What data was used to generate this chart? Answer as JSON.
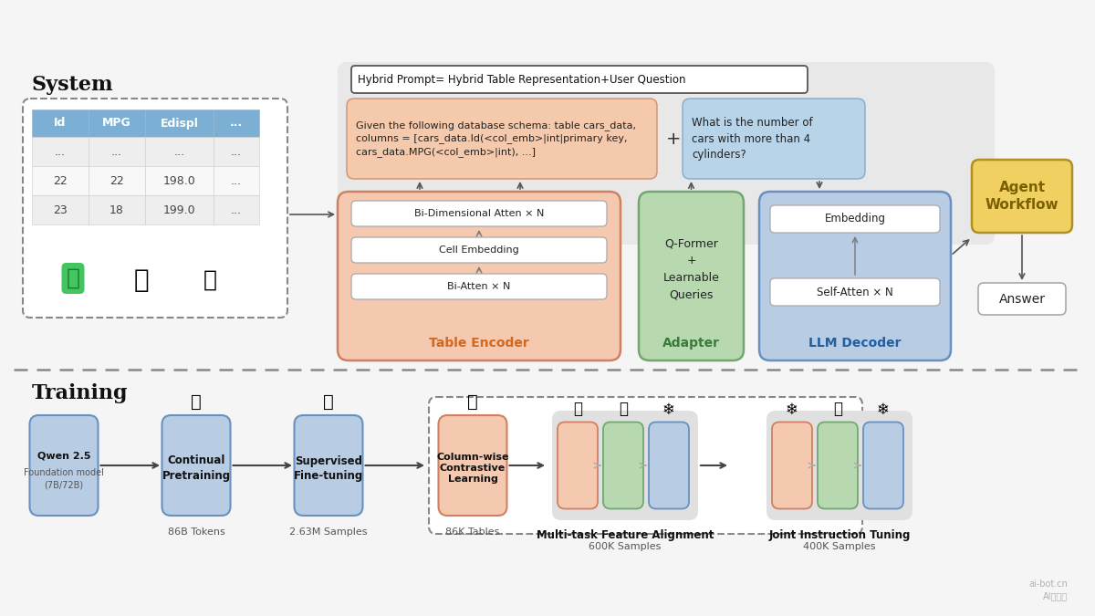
{
  "bg_color": "#f5f5f5",
  "system_label": "System",
  "training_label": "Training",
  "table_headers": [
    "Id",
    "MPG",
    "Edispl",
    "..."
  ],
  "table_rows": [
    [
      "...",
      "...",
      "...",
      "..."
    ],
    [
      "22",
      "22",
      "198.0",
      "..."
    ],
    [
      "23",
      "18",
      "199.0",
      "..."
    ]
  ],
  "header_color": "#7bafd4",
  "header_text": "#ffffff",
  "row_bg_alt": "#eeeeee",
  "row_bg": "#f8f8f8",
  "hybrid_prompt_text": "Hybrid Prompt= Hybrid Table Representation+User Question",
  "salmon_text": "Given the following database schema: table cars_data,\ncolumns = [cars_data.Id(<col_emb>|int|primary key,\ncars_data.MPG(<col_emb>|int), ...]",
  "salmon_bg": "#f5c9ac",
  "salmon_border": "#d09070",
  "blue_text": "What is the number of\ncars with more than 4\ncylinders?",
  "blue_bg": "#b8d4e8",
  "blue_border": "#85aac8",
  "outer_prompt_bg": "#e8e8e8",
  "te_bg": "#f5c8b0",
  "te_border": "#d08060",
  "te_label": "Table Encoder",
  "te_label_color": "#d06820",
  "te_inner": [
    "Bi-Dimensional Atten × N",
    "Cell Embedding",
    "Bi-Atten × N"
  ],
  "ad_bg": "#b8d8b0",
  "ad_border": "#70a870",
  "ad_label": "Adapter",
  "ad_label_color": "#3a7a3a",
  "ad_text": "Q-Former\n+\nLearnable\nQueries",
  "ld_bg": "#b8cce4",
  "ld_border": "#6890c0",
  "ld_label": "LLM Decoder",
  "ld_label_color": "#2060a0",
  "ld_inner": [
    "Embedding",
    "Self-Atten × N"
  ],
  "aw_bg": "#f0d060",
  "aw_border": "#b09020",
  "aw_text": "Agent\nWorkflow",
  "aw_text_color": "#7a6000",
  "ans_bg": "#ffffff",
  "ans_border": "#aaaaaa",
  "ans_text": "Answer",
  "sep_color": "#888888",
  "node_blue_bg": "#b8cce4",
  "node_blue_border": "#6890c0",
  "node_salmon_bg": "#f5c8b0",
  "node_salmon_border": "#d08060",
  "node_green_bg": "#b8d8b0",
  "node_green_border": "#70a870",
  "arrow_color": "#444444",
  "gray_arrow_color": "#aaaaaa",
  "watermark": "ai-bot.cn\nAI工具集"
}
